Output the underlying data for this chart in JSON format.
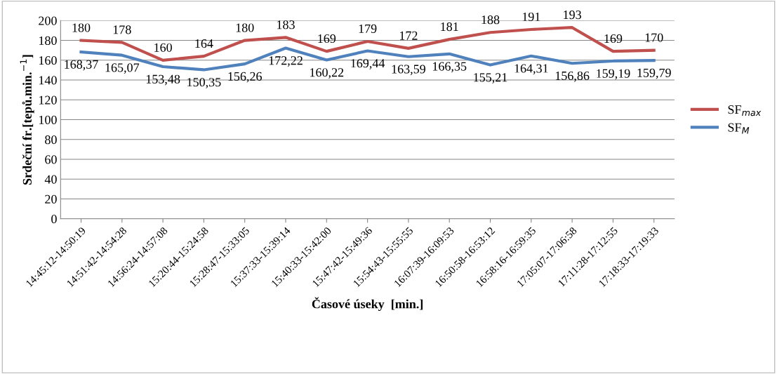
{
  "chart_data": {
    "type": "line",
    "xlabel": "Časové úseky  [min.]",
    "ylabel": "Srdeční fr.[tepů.min.$^{−1}$]",
    "categories": [
      "14:45:12-14:50:19",
      "14:51:42-14:54:28",
      "14:56:24-14:57:08",
      "15:20:44-15:24:58",
      "15:28:47-15:33:05",
      "15:37:33-15:39:14",
      "15:40:33-15:42:00",
      "15:47:42-15:49:36",
      "15:54:43-15:55:55",
      "16:07:39-16:09:53",
      "16:50:58-16:53:12",
      "16:58:16-16:59:35",
      "17:05:07-17:06:58",
      "17:11:28-17:12:55",
      "17:18:33-17:19:33"
    ],
    "series": [
      {
        "name": "SF$_{max}$",
        "color": "#c0504d",
        "values": [
          180,
          178,
          160,
          164,
          180,
          183,
          169,
          179,
          172,
          181,
          188,
          191,
          193,
          169,
          170
        ],
        "value_labels": [
          "180",
          "178",
          "160",
          "164",
          "180",
          "183",
          "169",
          "179",
          "172",
          "181",
          "188",
          "191",
          "193",
          "169",
          "170"
        ]
      },
      {
        "name": "SF$_{M}$",
        "color": "#4f81bd",
        "values": [
          168.37,
          165.07,
          153.48,
          150.35,
          156.26,
          172.22,
          160.22,
          169.44,
          163.59,
          166.35,
          155.21,
          164.31,
          156.86,
          159.19,
          159.79
        ],
        "value_labels": [
          "168,37",
          "165,07",
          "153,48",
          "150,35",
          "156,26",
          "172,22",
          "160,22",
          "169,44",
          "163,59",
          "166,35",
          "155,21",
          "164,31",
          "156,86",
          "159,19",
          "159,79"
        ]
      }
    ],
    "ylim": [
      0,
      200
    ],
    "yticks": [
      0,
      20,
      40,
      60,
      80,
      100,
      120,
      140,
      160,
      180,
      200
    ],
    "grid": "y",
    "legend": "right",
    "marker": "none",
    "line_style": "solid"
  }
}
